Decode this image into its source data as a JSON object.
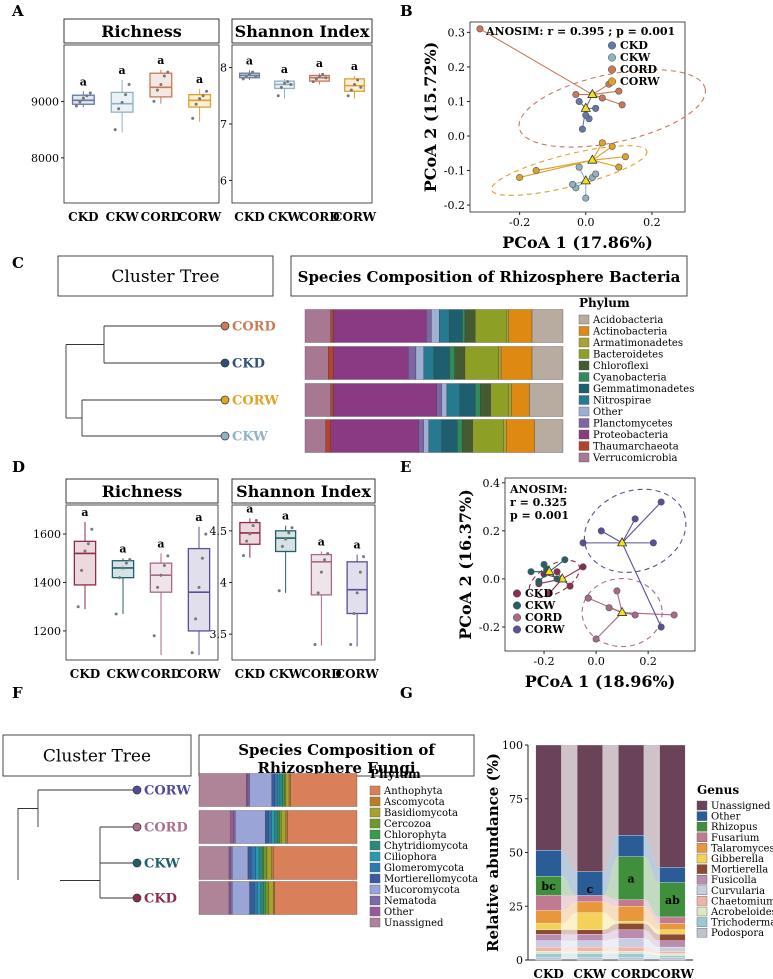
{
  "panel_labels": [
    "A",
    "B",
    "C",
    "D",
    "E",
    "F",
    "G"
  ],
  "groups": [
    "CKD",
    "CKW",
    "CORD",
    "CORW"
  ],
  "colors": {
    "bact_groups": {
      "CKD": "#6478a6",
      "CKW": "#8fb2c4",
      "CORD": "#c87858",
      "CORW": "#e0a12a"
    },
    "fungi_groups": {
      "CKD": "#8e2c4a",
      "CKW": "#245f6a",
      "CORD": "#a86a8a",
      "CORW": "#5a4f98"
    },
    "bact_tree": {
      "CORD": "#c97c55",
      "CKD": "#2f4e7a",
      "CORW": "#e2a224",
      "CKW": "#8fb2c4"
    },
    "fungi_tree": {
      "CORW": "#4e4a9c",
      "CORD": "#a8708e",
      "CKW": "#1e5f69",
      "CKD": "#8b2d4b"
    }
  },
  "chart_data": [
    {
      "id": "A1",
      "type": "box",
      "title": "Richness",
      "categories": [
        "CKD",
        "CKW",
        "CORD",
        "CORW"
      ],
      "ylim": [
        7200,
        10000
      ],
      "yticks": [
        8000,
        9000
      ],
      "boxes": [
        {
          "q1": 8950,
          "median": 9020,
          "q3": 9110,
          "lo": 8900,
          "hi": 9180,
          "letter": "a",
          "points": [
            8920,
            8990,
            9060,
            9100,
            9150
          ]
        },
        {
          "q1": 8810,
          "median": 8960,
          "q3": 9160,
          "lo": 8450,
          "hi": 9380,
          "letter": "a",
          "points": [
            8500,
            8870,
            8980,
            9120,
            9300
          ]
        },
        {
          "q1": 9080,
          "median": 9250,
          "q3": 9500,
          "lo": 8960,
          "hi": 9560,
          "letter": "a",
          "points": [
            9000,
            9200,
            9300,
            9450,
            9520
          ]
        },
        {
          "q1": 8900,
          "median": 9020,
          "q3": 9120,
          "lo": 8640,
          "hi": 9220,
          "letter": "a",
          "points": [
            8700,
            8950,
            9050,
            9100,
            9180
          ]
        }
      ]
    },
    {
      "id": "A2",
      "type": "box",
      "title": "Shannon Index",
      "categories": [
        "CKD",
        "CKW",
        "CORD",
        "CORW"
      ],
      "ylim": [
        5.6,
        8.4
      ],
      "yticks": [
        6,
        7,
        8
      ],
      "boxes": [
        {
          "q1": 7.82,
          "median": 7.86,
          "q3": 7.9,
          "lo": 7.78,
          "hi": 7.95,
          "letter": "a",
          "points": [
            7.8,
            7.85,
            7.88,
            7.92,
            7.84
          ]
        },
        {
          "q1": 7.63,
          "median": 7.7,
          "q3": 7.76,
          "lo": 7.45,
          "hi": 7.8,
          "letter": "a",
          "points": [
            7.5,
            7.65,
            7.72,
            7.75,
            7.7
          ]
        },
        {
          "q1": 7.76,
          "median": 7.82,
          "q3": 7.86,
          "lo": 7.7,
          "hi": 7.9,
          "letter": "a",
          "points": [
            7.75,
            7.8,
            7.84,
            7.88,
            7.82
          ]
        },
        {
          "q1": 7.58,
          "median": 7.68,
          "q3": 7.8,
          "lo": 7.45,
          "hi": 7.85,
          "letter": "a",
          "points": [
            7.5,
            7.6,
            7.7,
            7.78,
            7.65
          ]
        }
      ]
    },
    {
      "id": "B",
      "type": "scatter",
      "title": "ANOSIM: r = 0.395 ; p = 0.001",
      "xlabel": "PCoA 1 (17.86%)",
      "ylabel": "PCoA 2 (15.72%)",
      "xlim": [
        -0.35,
        0.3
      ],
      "ylim": [
        -0.22,
        0.33
      ],
      "xticks": [
        -0.2,
        0.0,
        0.2
      ],
      "yticks": [
        -0.2,
        -0.1,
        0.0,
        0.1,
        0.2,
        0.3
      ],
      "legend": [
        "CKD",
        "CKW",
        "CORD",
        "CORW"
      ],
      "series": [
        {
          "name": "CKD",
          "centroid": [
            0.0,
            0.08
          ],
          "points": [
            [
              -0.02,
              0.1
            ],
            [
              0.01,
              0.05
            ],
            [
              0.03,
              0.08
            ],
            [
              -0.01,
              0.02
            ],
            [
              0.02,
              0.12
            ],
            [
              0.0,
              0.06
            ]
          ]
        },
        {
          "name": "CKW",
          "centroid": [
            0.0,
            -0.13
          ],
          "points": [
            [
              -0.03,
              -0.15
            ],
            [
              0.02,
              -0.12
            ],
            [
              0.0,
              -0.18
            ],
            [
              -0.02,
              -0.09
            ],
            [
              0.03,
              -0.11
            ],
            [
              -0.04,
              -0.14
            ]
          ]
        },
        {
          "name": "CORD",
          "centroid": [
            0.02,
            0.12
          ],
          "points": [
            [
              -0.32,
              0.31
            ],
            [
              0.1,
              0.13
            ],
            [
              0.07,
              0.15
            ],
            [
              0.11,
              0.09
            ],
            [
              0.05,
              0.11
            ],
            [
              -0.03,
              0.12
            ]
          ]
        },
        {
          "name": "CORW",
          "centroid": [
            0.02,
            -0.07
          ],
          "points": [
            [
              -0.2,
              -0.12
            ],
            [
              -0.15,
              -0.1
            ],
            [
              0.08,
              -0.03
            ],
            [
              0.12,
              -0.06
            ],
            [
              0.05,
              -0.02
            ],
            [
              0.1,
              -0.09
            ]
          ]
        }
      ]
    },
    {
      "id": "C",
      "type": "stacked_bar_h",
      "tree_title": "Cluster Tree",
      "title": "Species Composition of Rhizosphere Bacteria",
      "legend_title": "Phylum",
      "rows": [
        "CORD",
        "CKD",
        "CORW",
        "CKW"
      ],
      "taxa": [
        "Acidobacteria",
        "Actinobacteria",
        "Armatimonadetes",
        "Bacteroidetes",
        "Chloroflexi",
        "Cyanobacteria",
        "Gemmatimonadetes",
        "Nitrospirae",
        "Other",
        "Planctomycetes",
        "Proteobacteria",
        "Thaumarchaeota",
        "Verrucomicrobia"
      ],
      "taxa_colors": [
        "#b8aba0",
        "#de8a12",
        "#a8a432",
        "#8e9f26",
        "#445a30",
        "#2f8a5c",
        "#1e5e6e",
        "#267a90",
        "#9fb0d4",
        "#7d66a4",
        "#8a3a82",
        "#b2442c",
        "#a87892"
      ],
      "values": [
        [
          0.12,
          0.09,
          0.01,
          0.12,
          0.04,
          0.01,
          0.05,
          0.04,
          0.03,
          0.02,
          0.36,
          0.01,
          0.1
        ],
        [
          0.12,
          0.12,
          0.01,
          0.13,
          0.04,
          0.02,
          0.06,
          0.04,
          0.03,
          0.03,
          0.29,
          0.02,
          0.09
        ],
        [
          0.13,
          0.07,
          0.01,
          0.07,
          0.04,
          0.02,
          0.06,
          0.05,
          0.02,
          0.02,
          0.4,
          0.01,
          0.1
        ],
        [
          0.11,
          0.11,
          0.01,
          0.12,
          0.04,
          0.02,
          0.06,
          0.05,
          0.02,
          0.02,
          0.34,
          0.02,
          0.08
        ]
      ]
    },
    {
      "id": "D1",
      "type": "box",
      "title": "Richness",
      "categories": [
        "CKD",
        "CKW",
        "CORD",
        "CORW"
      ],
      "ylim": [
        1080,
        1720
      ],
      "yticks": [
        1200,
        1400,
        1600
      ],
      "boxes": [
        {
          "q1": 1390,
          "median": 1520,
          "q3": 1570,
          "lo": 1290,
          "hi": 1650,
          "letter": "a",
          "points": [
            1300,
            1450,
            1530,
            1560,
            1620
          ]
        },
        {
          "q1": 1420,
          "median": 1460,
          "q3": 1490,
          "lo": 1270,
          "hi": 1500,
          "letter": "a",
          "points": [
            1270,
            1420,
            1460,
            1480,
            1495
          ]
        },
        {
          "q1": 1360,
          "median": 1430,
          "q3": 1480,
          "lo": 1100,
          "hi": 1520,
          "letter": "a",
          "points": [
            1180,
            1380,
            1430,
            1470,
            1510
          ]
        },
        {
          "q1": 1200,
          "median": 1360,
          "q3": 1540,
          "lo": 1100,
          "hi": 1630,
          "letter": "a",
          "points": [
            1110,
            1250,
            1380,
            1500,
            1600
          ]
        }
      ]
    },
    {
      "id": "D2",
      "type": "box",
      "title": "Shannon Index",
      "categories": [
        "CKD",
        "CKW",
        "CORD",
        "CORW"
      ],
      "ylim": [
        3.25,
        4.75
      ],
      "yticks": [
        3.5,
        4.0,
        4.5
      ],
      "boxes": [
        {
          "q1": 4.37,
          "median": 4.48,
          "q3": 4.58,
          "lo": 4.24,
          "hi": 4.62,
          "letter": "a",
          "points": [
            4.26,
            4.4,
            4.47,
            4.55,
            4.6
          ]
        },
        {
          "q1": 4.3,
          "median": 4.43,
          "q3": 4.5,
          "lo": 3.9,
          "hi": 4.55,
          "letter": "a",
          "points": [
            3.92,
            4.35,
            4.42,
            4.48,
            4.53
          ]
        },
        {
          "q1": 3.88,
          "median": 4.2,
          "q3": 4.27,
          "lo": 3.39,
          "hi": 4.3,
          "letter": "a",
          "points": [
            3.4,
            3.9,
            4.1,
            4.22,
            4.28
          ]
        },
        {
          "q1": 3.7,
          "median": 3.93,
          "q3": 4.2,
          "lo": 3.38,
          "hi": 4.27,
          "letter": "a",
          "points": [
            3.4,
            3.7,
            3.9,
            4.1,
            4.25
          ]
        }
      ]
    },
    {
      "id": "E",
      "type": "scatter",
      "title_lines": [
        "ANOSIM:",
        "r = 0.325",
        "p = 0.001"
      ],
      "xlabel": "PCoA 1 (18.96%)",
      "ylabel": "PCoA 2 (16.37%)",
      "xlim": [
        -0.35,
        0.38
      ],
      "ylim": [
        -0.3,
        0.42
      ],
      "xticks": [
        -0.2,
        0.0,
        0.2
      ],
      "yticks": [
        -0.2,
        0.0,
        0.2,
        0.4
      ],
      "legend": [
        "CKD",
        "CKW",
        "CORD",
        "CORW"
      ],
      "series": [
        {
          "name": "CKD",
          "centroid": [
            -0.13,
            0.0
          ],
          "points": [
            [
              -0.22,
              -0.02
            ],
            [
              -0.2,
              0.02
            ],
            [
              -0.15,
              0.03
            ],
            [
              -0.1,
              -0.03
            ],
            [
              -0.05,
              0.05
            ],
            [
              -0.18,
              -0.06
            ]
          ]
        },
        {
          "name": "CKW",
          "centroid": [
            -0.18,
            0.03
          ],
          "points": [
            [
              -0.25,
              0.03
            ],
            [
              -0.2,
              0.06
            ],
            [
              -0.15,
              0.0
            ],
            [
              -0.22,
              -0.01
            ],
            [
              -0.12,
              0.08
            ],
            [
              -0.19,
              0.04
            ]
          ]
        },
        {
          "name": "CORD",
          "centroid": [
            0.1,
            -0.14
          ],
          "points": [
            [
              -0.03,
              -0.08
            ],
            [
              0.05,
              -0.12
            ],
            [
              0.15,
              -0.15
            ],
            [
              0.3,
              -0.15
            ],
            [
              0.0,
              -0.25
            ],
            [
              0.08,
              -0.05
            ]
          ]
        },
        {
          "name": "CORW",
          "centroid": [
            0.1,
            0.15
          ],
          "points": [
            [
              -0.05,
              0.15
            ],
            [
              0.02,
              0.2
            ],
            [
              0.15,
              0.25
            ],
            [
              0.25,
              0.32
            ],
            [
              0.22,
              0.15
            ],
            [
              0.25,
              -0.2
            ]
          ]
        }
      ]
    },
    {
      "id": "F",
      "type": "stacked_bar_h",
      "tree_title": "Cluster Tree",
      "title_lines": [
        "Species Composition of",
        "Rhizosphere Fungi"
      ],
      "legend_title": "Phylum",
      "rows": [
        "CORW",
        "CORD",
        "CKW",
        "CKD"
      ],
      "taxa": [
        "Anthophyta",
        "Ascomycota",
        "Basidiomycota",
        "Cercozoa",
        "Chlorophyta",
        "Chytridiomycota",
        "Ciliophora",
        "Glomeromycota",
        "Mortierellomycota",
        "Mucoromycota",
        "Nematoda",
        "Other",
        "Unassigned"
      ],
      "taxa_colors": [
        "#d9805a",
        "#b97e2a",
        "#a9a22a",
        "#6d9a2a",
        "#389a4a",
        "#2a8a7a",
        "#2a9ab2",
        "#2a7ab2",
        "#3a5a9a",
        "#9aa4d6",
        "#7a6aaa",
        "#9a5a9a",
        "#b08498"
      ],
      "values": [
        [
          0.42,
          0.01,
          0.02,
          0.01,
          0.01,
          0.02,
          0.01,
          0.02,
          0.02,
          0.14,
          0.01,
          0.01,
          0.3
        ],
        [
          0.44,
          0.01,
          0.03,
          0.01,
          0.01,
          0.02,
          0.02,
          0.02,
          0.02,
          0.19,
          0.01,
          0.02,
          0.2
        ],
        [
          0.53,
          0.01,
          0.03,
          0.02,
          0.01,
          0.02,
          0.02,
          0.03,
          0.02,
          0.1,
          0.01,
          0.01,
          0.19
        ],
        [
          0.52,
          0.01,
          0.03,
          0.02,
          0.01,
          0.02,
          0.02,
          0.02,
          0.03,
          0.11,
          0.01,
          0.01,
          0.19
        ]
      ]
    },
    {
      "id": "G",
      "type": "stacked_area_bar",
      "ylabel": "Relative abundance (%)",
      "categories": [
        "CKD",
        "CKW",
        "CORD",
        "CORW"
      ],
      "ylim": [
        0,
        100
      ],
      "yticks": [
        0,
        25,
        50,
        75,
        100
      ],
      "legend_title": "Genus",
      "genera": [
        "Unassigned",
        "Other",
        "Rhizopus",
        "Fusarium",
        "Talaromyces",
        "Gibberella",
        "Mortierella",
        "Fusicolla",
        "Curvularia",
        "Chaetomium",
        "Acrobeloides",
        "Trichoderma",
        "Podospora"
      ],
      "genus_colors": [
        "#6a4358",
        "#2a5c98",
        "#3f8f3c",
        "#c27a92",
        "#e8973c",
        "#f4d25a",
        "#8b4a32",
        "#ba8cb0",
        "#c8cde4",
        "#f2b2a8",
        "#dce8c0",
        "#9ec8d6",
        "#bfc3d0"
      ],
      "letters": [
        "bc",
        "c",
        "a",
        "ab"
      ],
      "values": [
        [
          49,
          12,
          9,
          7,
          6,
          3,
          2,
          3,
          3,
          2,
          1,
          2,
          1
        ],
        [
          59,
          11,
          0,
          3,
          5,
          8,
          2,
          3,
          3,
          2,
          1,
          2,
          1
        ],
        [
          42,
          10,
          20,
          3,
          7,
          1,
          3,
          4,
          4,
          2,
          1,
          2,
          1
        ],
        [
          57,
          7,
          16,
          3,
          3,
          2,
          3,
          3,
          2,
          1,
          1,
          1,
          1
        ]
      ]
    }
  ]
}
